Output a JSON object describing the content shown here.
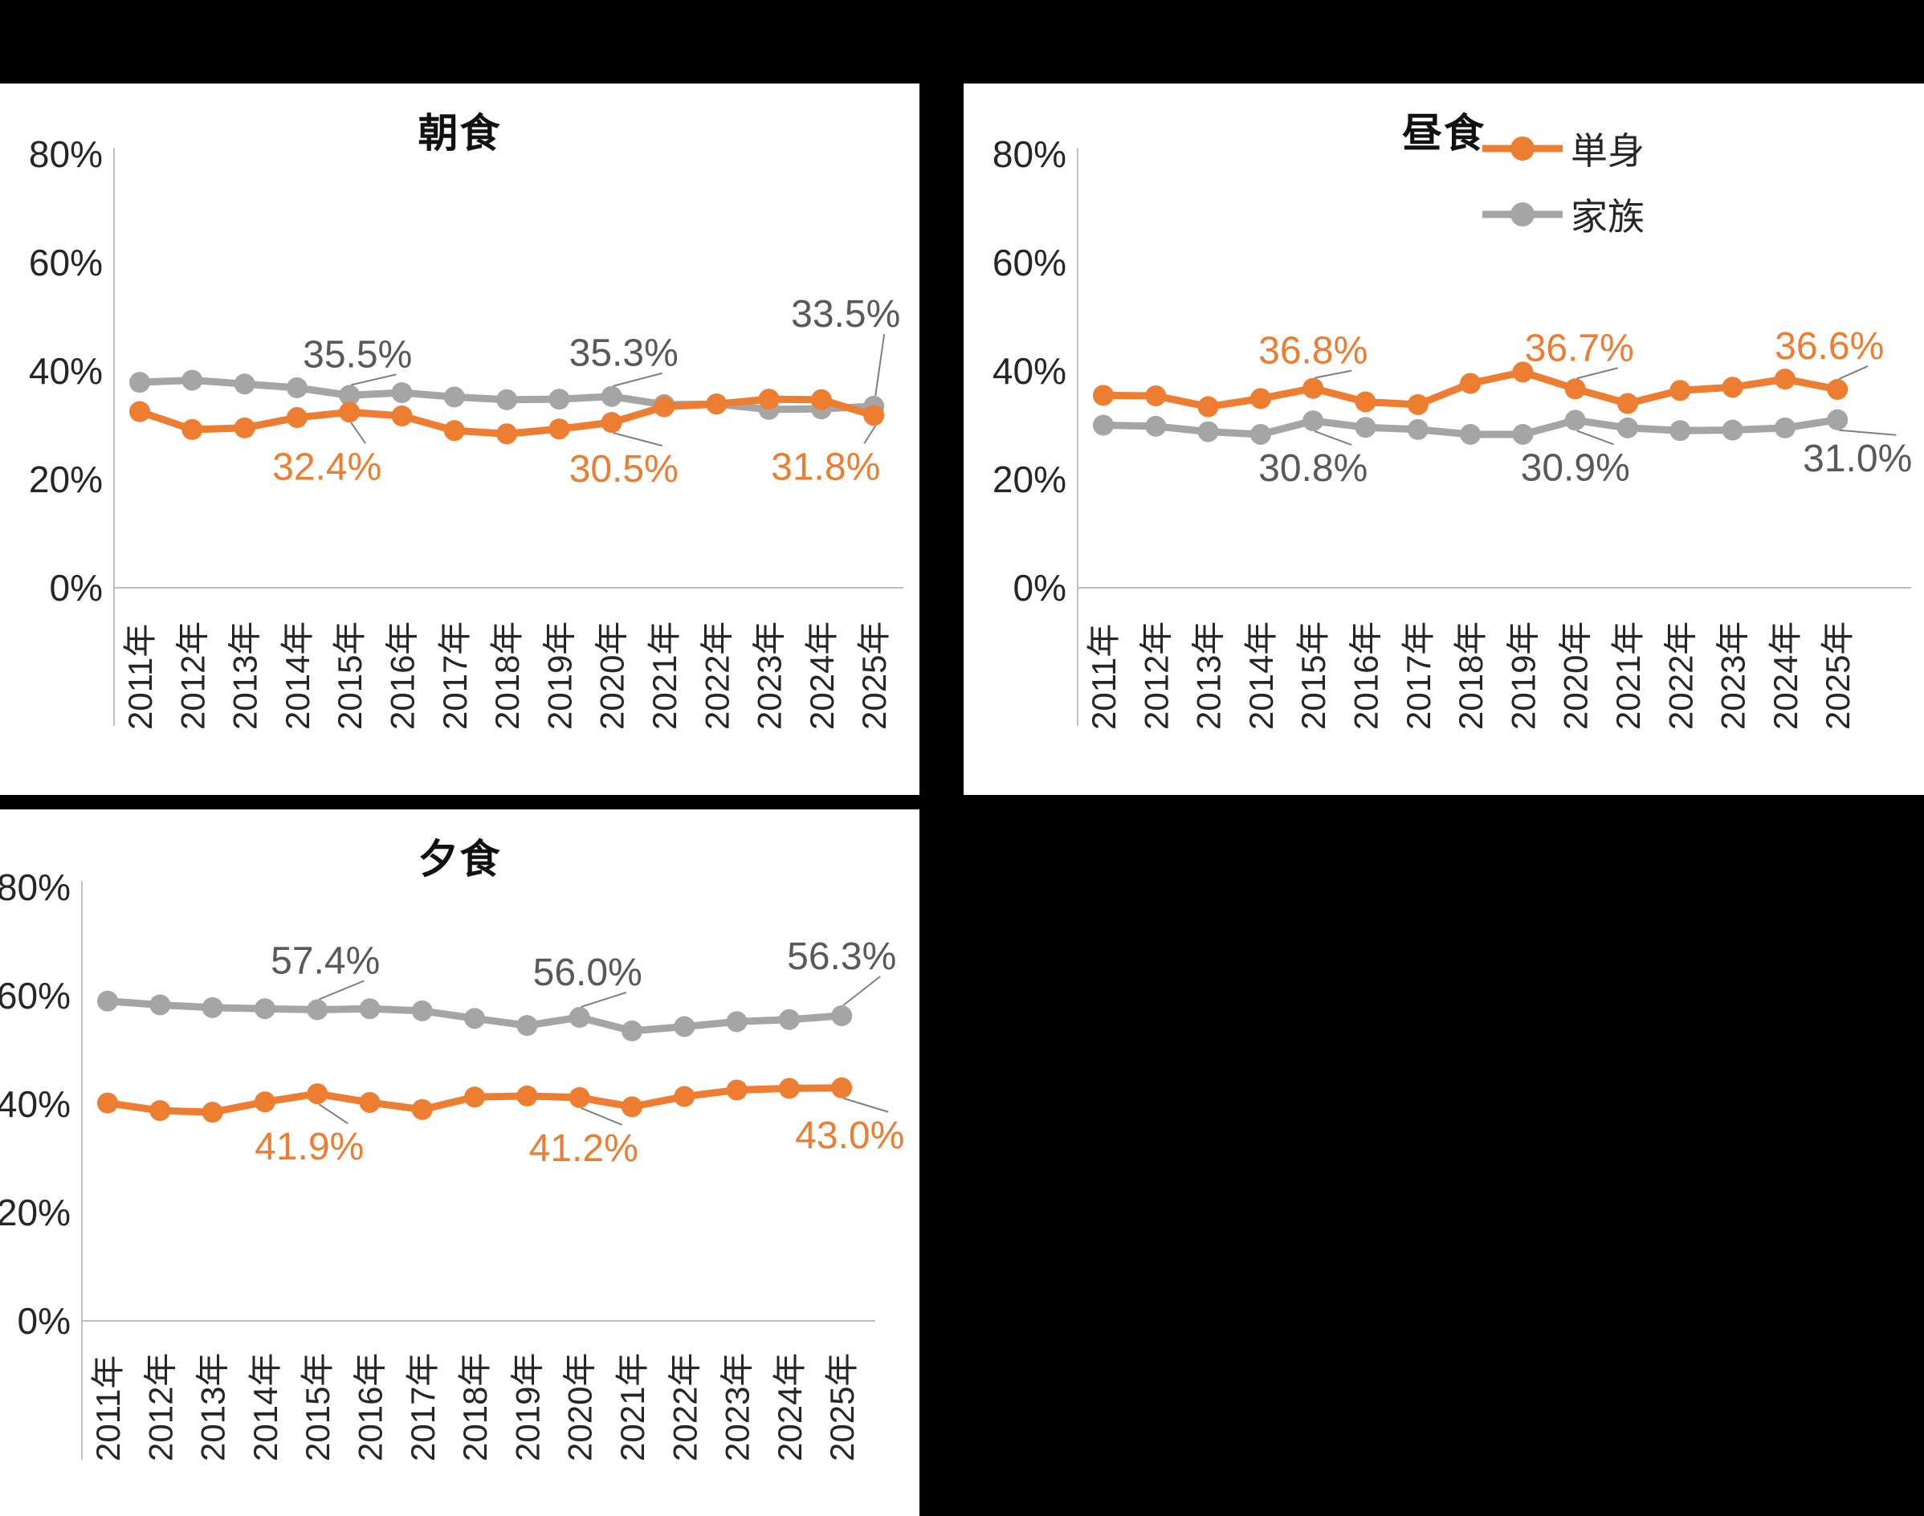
{
  "page": {
    "background": "#000000",
    "panel_background": "#FFFFFF"
  },
  "colors": {
    "single": "#ED7D31",
    "family": "#A5A5A5",
    "family_label_text": "#595959",
    "axis_line": "#BFBFBF",
    "leader_line": "#808080",
    "tick_text": "#262626"
  },
  "years": [
    "2011年",
    "2012年",
    "2013年",
    "2014年",
    "2015年",
    "2016年",
    "2017年",
    "2018年",
    "2019年",
    "2020年",
    "2021年",
    "2022年",
    "2023年",
    "2024年",
    "2025年"
  ],
  "y_axis": {
    "ticks": [
      "80%",
      "60%",
      "40%",
      "20%",
      "0%"
    ],
    "range_percent": [
      0,
      80
    ]
  },
  "legend": {
    "items": [
      {
        "id": "single",
        "label": "単身",
        "color": "#ED7D31"
      },
      {
        "id": "family",
        "label": "家族",
        "color": "#A5A5A5"
      }
    ]
  },
  "chart_data": [
    {
      "type": "line",
      "title": "朝食",
      "categories": [
        "2011年",
        "2012年",
        "2013年",
        "2014年",
        "2015年",
        "2016年",
        "2017年",
        "2018年",
        "2019年",
        "2020年",
        "2021年",
        "2022年",
        "2023年",
        "2024年",
        "2025年"
      ],
      "ylim": [
        0,
        80
      ],
      "grid": false,
      "series": [
        {
          "name": "単身",
          "color": "#ED7D31",
          "values": [
            32.5,
            29.2,
            29.5,
            31.4,
            32.4,
            31.7,
            29.0,
            28.4,
            29.3,
            30.5,
            33.4,
            33.9,
            34.8,
            34.7,
            31.8
          ],
          "annotations": [
            {
              "index": 4,
              "text": "32.4%",
              "side": "below"
            },
            {
              "index": 9,
              "text": "30.5%",
              "side": "below"
            },
            {
              "index": 14,
              "text": "31.8%",
              "side": "below"
            }
          ]
        },
        {
          "name": "家族",
          "color": "#A5A5A5",
          "label_color": "#595959",
          "values": [
            37.9,
            38.3,
            37.6,
            36.9,
            35.5,
            36.0,
            35.2,
            34.7,
            34.8,
            35.3,
            33.8,
            33.9,
            32.9,
            33.0,
            33.5
          ],
          "annotations": [
            {
              "index": 4,
              "text": "35.5%",
              "side": "above"
            },
            {
              "index": 9,
              "text": "35.3%",
              "side": "above"
            },
            {
              "index": 14,
              "text": "33.5%",
              "side": "above"
            }
          ]
        }
      ]
    },
    {
      "type": "line",
      "title": "昼食",
      "categories": [
        "2011年",
        "2012年",
        "2013年",
        "2014年",
        "2015年",
        "2016年",
        "2017年",
        "2018年",
        "2019年",
        "2020年",
        "2021年",
        "2022年",
        "2023年",
        "2024年",
        "2025年"
      ],
      "ylim": [
        0,
        80
      ],
      "grid": false,
      "legend_position": "top-right",
      "series": [
        {
          "name": "単身",
          "color": "#ED7D31",
          "values": [
            35.5,
            35.4,
            33.4,
            34.9,
            36.8,
            34.3,
            33.8,
            37.7,
            39.8,
            36.7,
            34.0,
            36.4,
            37.0,
            38.5,
            36.6
          ],
          "annotations": [
            {
              "index": 4,
              "text": "36.8%",
              "side": "above"
            },
            {
              "index": 9,
              "text": "36.7%",
              "side": "above"
            },
            {
              "index": 14,
              "text": "36.6%",
              "side": "above"
            }
          ]
        },
        {
          "name": "家族",
          "color": "#A5A5A5",
          "label_color": "#595959",
          "values": [
            30.0,
            29.8,
            28.8,
            28.3,
            30.8,
            29.6,
            29.2,
            28.3,
            28.3,
            30.9,
            29.5,
            29.0,
            29.1,
            29.5,
            31.0
          ],
          "annotations": [
            {
              "index": 4,
              "text": "30.8%",
              "side": "below"
            },
            {
              "index": 9,
              "text": "30.9%",
              "side": "below"
            },
            {
              "index": 14,
              "text": "31.0%",
              "side": "below"
            }
          ]
        }
      ]
    },
    {
      "type": "line",
      "title": "夕食",
      "categories": [
        "2011年",
        "2012年",
        "2013年",
        "2014年",
        "2015年",
        "2016年",
        "2017年",
        "2018年",
        "2019年",
        "2020年",
        "2021年",
        "2022年",
        "2023年",
        "2024年",
        "2025年"
      ],
      "ylim": [
        0,
        80
      ],
      "grid": false,
      "series": [
        {
          "name": "単身",
          "color": "#ED7D31",
          "values": [
            40.2,
            38.8,
            38.5,
            40.4,
            41.9,
            40.3,
            39.0,
            41.3,
            41.5,
            41.2,
            39.5,
            41.4,
            42.6,
            42.9,
            43.0
          ],
          "annotations": [
            {
              "index": 4,
              "text": "41.9%",
              "side": "below"
            },
            {
              "index": 9,
              "text": "41.2%",
              "side": "below"
            },
            {
              "index": 14,
              "text": "43.0%",
              "side": "below"
            }
          ]
        },
        {
          "name": "家族",
          "color": "#A5A5A5",
          "label_color": "#595959",
          "values": [
            59.0,
            58.3,
            57.8,
            57.6,
            57.4,
            57.6,
            57.2,
            55.8,
            54.5,
            56.0,
            53.5,
            54.3,
            55.2,
            55.6,
            56.3
          ],
          "annotations": [
            {
              "index": 4,
              "text": "57.4%",
              "side": "above"
            },
            {
              "index": 9,
              "text": "56.0%",
              "side": "above"
            },
            {
              "index": 14,
              "text": "56.3%",
              "side": "above"
            }
          ]
        }
      ]
    }
  ]
}
